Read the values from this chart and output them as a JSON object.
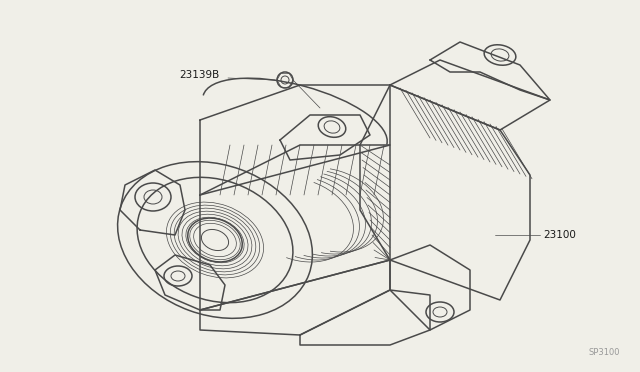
{
  "bg_color": "#f0efe8",
  "line_color": "#4a4a4a",
  "label_color": "#1a1a1a",
  "fig_width": 6.4,
  "fig_height": 3.72,
  "dpi": 100,
  "label_23139B": "23139B",
  "label_23100": "23100",
  "ref_label": "SP3100",
  "ref_color": "#999999"
}
